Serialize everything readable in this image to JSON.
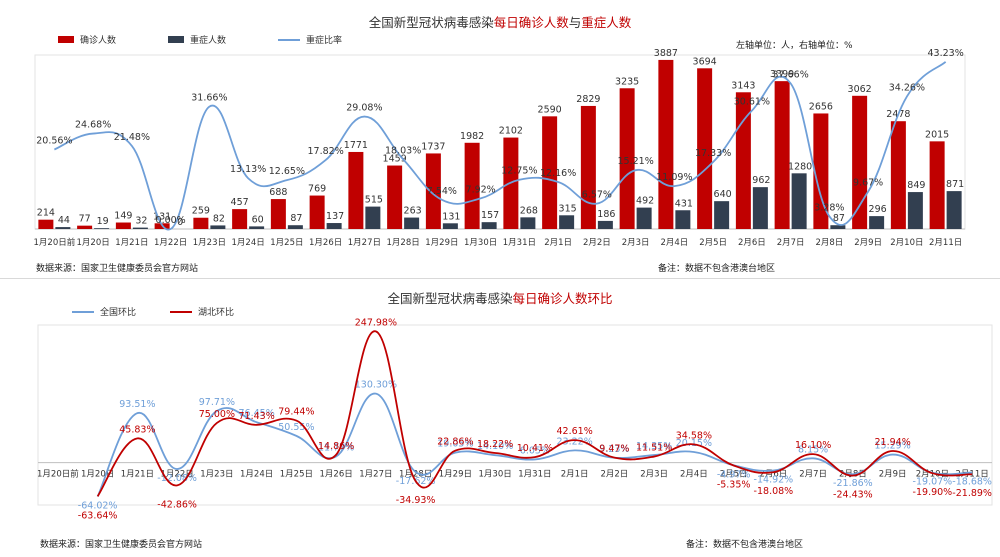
{
  "chart_data": [
    {
      "type": "bar",
      "title": {
        "prefix": "全国新型冠状病毒感染",
        "hl1": "每日确诊人数",
        "mid": "与",
        "hl2": "重症人数"
      },
      "units_note": "左轴单位：人，右轴单位：%",
      "source": "数据来源：国家卫生健康委员会官方网站",
      "remark": "备注：数据不包含港澳台地区",
      "categories": [
        "1月20日前",
        "1月20日",
        "1月21日",
        "1月22日",
        "1月23日",
        "1月24日",
        "1月25日",
        "1月26日",
        "1月27日",
        "1月28日",
        "1月29日",
        "1月30日",
        "1月31日",
        "2月1日",
        "2月2日",
        "2月3日",
        "2月4日",
        "2月5日",
        "2月6日",
        "2月7日",
        "2月8日",
        "2月9日",
        "2月10日",
        "2月11日"
      ],
      "series": [
        {
          "name": "确诊人数",
          "type": "bar",
          "axis": "left",
          "color": "#c00000",
          "values": [
            214,
            77,
            149,
            131,
            259,
            457,
            688,
            769,
            1771,
            1459,
            1737,
            1982,
            2102,
            2590,
            2829,
            3235,
            3887,
            3694,
            3143,
            3399,
            2656,
            3062,
            2478,
            2015
          ]
        },
        {
          "name": "重症人数",
          "type": "bar",
          "axis": "left",
          "color": "#323f50",
          "values": [
            44,
            19,
            32,
            0,
            82,
            60,
            87,
            137,
            515,
            263,
            131,
            157,
            268,
            315,
            186,
            492,
            431,
            640,
            962,
            1280,
            87,
            296,
            849,
            871
          ]
        },
        {
          "name": "重症比率",
          "type": "line",
          "axis": "right",
          "color": "#6f9fd8",
          "values": [
            20.56,
            24.68,
            21.48,
            0.0,
            31.66,
            13.13,
            12.65,
            17.82,
            29.08,
            18.03,
            7.54,
            7.92,
            12.75,
            12.16,
            6.57,
            15.21,
            11.09,
            17.33,
            30.61,
            37.66,
            3.28,
            9.67,
            34.26,
            43.23
          ],
          "labels": [
            "20.56%",
            "24.68%",
            "21.48%",
            "0.00%",
            "31.66%",
            "13.13%",
            "12.65%",
            "17.82%",
            "29.08%",
            "18.03%",
            "7.54%",
            "7.92%",
            "12.75%",
            "12.16%",
            "6.57%",
            "15.21%",
            "11.09%",
            "17.33%",
            "30.61%",
            "37.66%",
            "3.28%",
            "9.67%",
            "34.26%",
            "43.23%"
          ]
        }
      ],
      "bar_labels": {
        "confirmed": [
          "214",
          "77",
          "149",
          "131",
          "259",
          "457",
          "688",
          "769",
          "1771",
          "1459",
          "1737",
          "1982",
          "2102",
          "2590",
          "2829",
          "3235",
          "3887",
          "3694",
          "3143",
          "3399",
          "2656",
          "3062",
          "2478",
          "2015"
        ],
        "severe": [
          "44",
          "19",
          "32",
          "0",
          "82",
          "60",
          "87",
          "137",
          "515",
          "263",
          "131",
          "157",
          "268",
          "315",
          "186",
          "492",
          "431",
          "640",
          "962",
          "1280",
          "87",
          "296",
          "849",
          "871"
        ]
      },
      "ylim_left": [
        0,
        4000
      ],
      "ylim_right": [
        0,
        45
      ],
      "legend_position": "top-left"
    },
    {
      "type": "line",
      "title": {
        "prefix": "全国新型冠状病毒感染",
        "hl1": "每日确诊人数环比"
      },
      "source": "数据来源：国家卫生健康委员会官方网站",
      "remark": "备注：数据不包含港澳台地区",
      "categories": [
        "1月20日前",
        "1月20日",
        "1月21日",
        "1月22日",
        "1月23日",
        "1月24日",
        "1月25日",
        "1月26日",
        "1月27日",
        "1月28日",
        "1月29日",
        "1月30日",
        "1月31日",
        "2月1日",
        "2月2日",
        "2月3日",
        "2月4日",
        "2月5日",
        "2月6日",
        "2月7日",
        "2月8日",
        "2月9日",
        "2月10日",
        "2月11日"
      ],
      "series": [
        {
          "name": "全国环比",
          "color": "#6f9fd8",
          "values": [
            null,
            -64.02,
            93.51,
            -12.08,
            97.71,
            76.45,
            50.55,
            11.77,
            130.3,
            -17.62,
            19.05,
            14.1,
            6.05,
            23.22,
            9.23,
            14.35,
            20.15,
            -4.97,
            -14.92,
            8.15,
            -21.86,
            15.29,
            -19.07,
            -18.68
          ],
          "labels": [
            "",
            "-64.02%",
            "93.51%",
            "-12.08%",
            "97.71%",
            "76.45%",
            "50.55%",
            "11.77%",
            "130.30%",
            "-17.62%",
            "19.05%",
            "14.10%",
            "6.05%",
            "23.22%",
            "9.23%",
            "14.35%",
            "20.15%",
            "-4.97%",
            "-14.92%",
            "8.15%",
            "-21.86%",
            "15.29%",
            "-19.07%",
            "-18.68%"
          ]
        },
        {
          "name": "湖北环比",
          "color": "#c00000",
          "values": [
            null,
            -63.64,
            45.83,
            -42.86,
            75.0,
            71.43,
            79.44,
            14.86,
            247.98,
            -34.93,
            22.86,
            18.22,
            10.41,
            42.61,
            9.47,
            11.51,
            34.58,
            -5.35,
            -18.08,
            16.1,
            -24.43,
            21.94,
            -19.9,
            -21.89
          ],
          "labels": [
            "",
            "-63.64%",
            "45.83%",
            "-42.86%",
            "75.00%",
            "71.43%",
            "79.44%",
            "14.86%",
            "247.98%",
            "-34.93%",
            "22.86%",
            "18.22%",
            "10.41%",
            "42.61%",
            "9.47%",
            "11.51%",
            "34.58%",
            "-5.35%",
            "-18.08%",
            "16.10%",
            "-24.43%",
            "21.94%",
            "-19.90%",
            "-21.89%"
          ]
        }
      ],
      "ylim": [
        -80,
        260
      ],
      "legend_position": "top-left"
    }
  ]
}
